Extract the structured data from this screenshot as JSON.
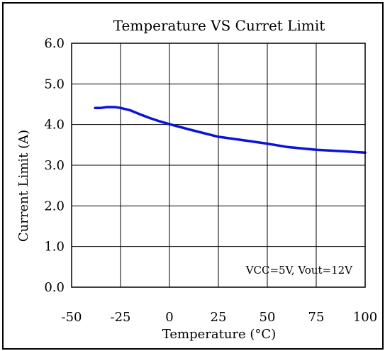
{
  "chart_data": {
    "type": "line",
    "title": "Temperature VS Curret Limit",
    "xlabel": "Temperature (°C)",
    "ylabel": "Current Limit (A)",
    "xlim": [
      -50,
      100
    ],
    "ylim": [
      0,
      6
    ],
    "x_ticks": [
      "-50",
      "-25",
      "0",
      "25",
      "50",
      "75",
      "100"
    ],
    "y_ticks": [
      "0.0",
      "1.0",
      "2.0",
      "3.0",
      "4.0",
      "5.0",
      "6.0"
    ],
    "grid": true,
    "annotation": "VCC=5V, Vout=12V",
    "series": [
      {
        "color": "#0a14d8",
        "x": [
          -38,
          -35,
          -32,
          -28,
          -25,
          -20,
          -15,
          -10,
          -5,
          0,
          10,
          25,
          40,
          50,
          60,
          75,
          90,
          100
        ],
        "y": [
          4.41,
          4.41,
          4.43,
          4.43,
          4.41,
          4.35,
          4.25,
          4.16,
          4.08,
          4.01,
          3.88,
          3.7,
          3.6,
          3.53,
          3.45,
          3.38,
          3.34,
          3.31
        ]
      }
    ]
  }
}
